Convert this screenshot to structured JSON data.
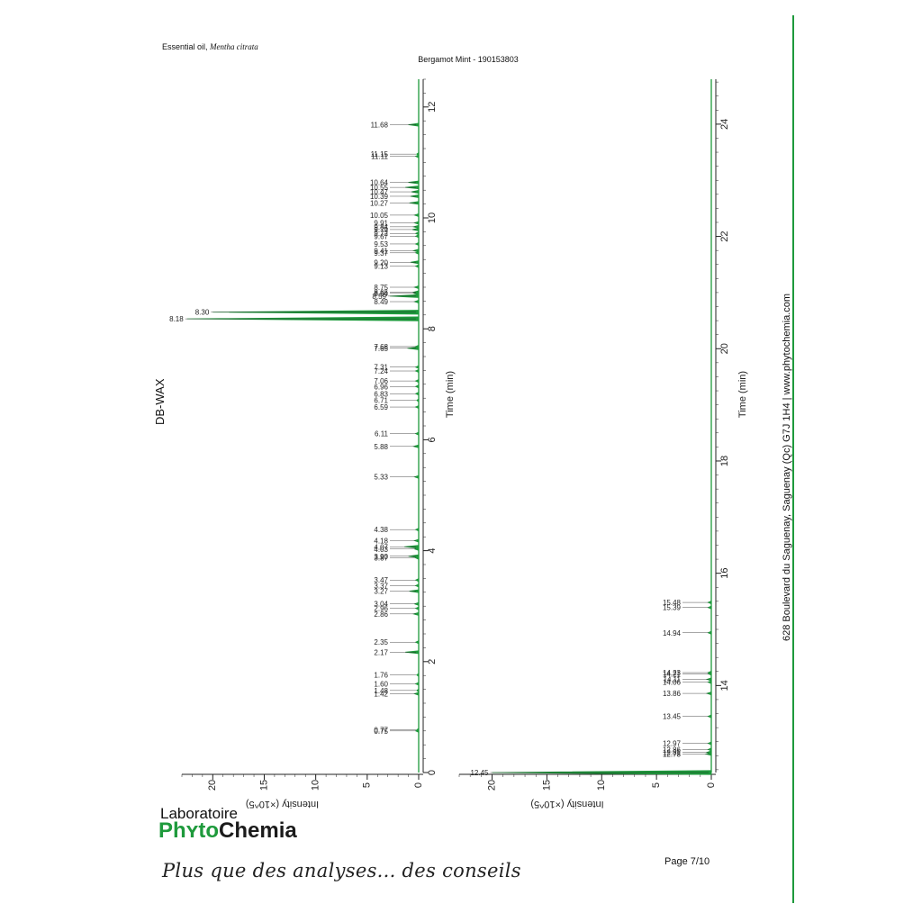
{
  "header": {
    "sample_prefix": "Essential oil, ",
    "sample_latin": "Mentha citrata",
    "title": "Bergamot Mint - 190153803"
  },
  "column_label": "DB-WAX",
  "footer": {
    "logo_line1": "Laboratoire",
    "logo_line2a": "Ph",
    "logo_line2b": "to",
    "logo_line2c": "Chemia",
    "tagline": "Plus que des analyses... des conseils",
    "page": "Page 7/10"
  },
  "sidebar": {
    "address": "628 Boulevard du Saguenay, Saguenay (Qc)  G7J 1H4  |  www.phytochemia.com"
  },
  "colors": {
    "trace": "#1e9a3c",
    "axis": "#222222",
    "brand": "#1e9a3c"
  },
  "chart_data": [
    {
      "type": "line",
      "orientation": "rotated",
      "xlabel": "Time (min)",
      "ylabel": "Intensity (×10^5)",
      "xlim": [
        0,
        12.5
      ],
      "ylim": [
        0,
        23
      ],
      "x_ticks": [
        0,
        2,
        4,
        6,
        8,
        10,
        12
      ],
      "y_ticks": [
        0,
        5,
        10,
        15,
        20
      ],
      "peaks": [
        {
          "t": 0.75,
          "h": 0.3,
          "label": "0.75"
        },
        {
          "t": 0.77,
          "h": 0.2,
          "label": "0.77"
        },
        {
          "t": 1.42,
          "h": 0.4,
          "label": "1.42"
        },
        {
          "t": 1.48,
          "h": 0.2,
          "label": "1.48"
        },
        {
          "t": 1.6,
          "h": 0.3,
          "label": "1.60"
        },
        {
          "t": 1.76,
          "h": 0.2,
          "label": "1.76"
        },
        {
          "t": 2.17,
          "h": 1.3,
          "label": "2.17"
        },
        {
          "t": 2.35,
          "h": 0.3,
          "label": "2.35"
        },
        {
          "t": 2.86,
          "h": 0.5,
          "label": "2.86"
        },
        {
          "t": 2.96,
          "h": 0.3,
          "label": "2.96"
        },
        {
          "t": 3.04,
          "h": 0.4,
          "label": "3.04"
        },
        {
          "t": 3.27,
          "h": 0.9,
          "label": "3.27"
        },
        {
          "t": 3.37,
          "h": 0.3,
          "label": "3.37"
        },
        {
          "t": 3.47,
          "h": 0.3,
          "label": "3.47"
        },
        {
          "t": 3.87,
          "h": 0.3,
          "label": "3.87"
        },
        {
          "t": 3.9,
          "h": 1.0,
          "label": "3.90"
        },
        {
          "t": 4.03,
          "h": 0.4,
          "label": "4.03"
        },
        {
          "t": 4.07,
          "h": 1.4,
          "label": "4.07"
        },
        {
          "t": 4.18,
          "h": 0.4,
          "label": "4.18"
        },
        {
          "t": 4.38,
          "h": 0.3,
          "label": "4.38"
        },
        {
          "t": 5.33,
          "h": 0.4,
          "label": "5.33"
        },
        {
          "t": 5.88,
          "h": 0.5,
          "label": "5.88"
        },
        {
          "t": 6.11,
          "h": 0.3,
          "label": "6.11"
        },
        {
          "t": 6.59,
          "h": 0.3,
          "label": "6.59"
        },
        {
          "t": 6.71,
          "h": 0.2,
          "label": "6.71"
        },
        {
          "t": 6.83,
          "h": 0.3,
          "label": "6.83"
        },
        {
          "t": 6.96,
          "h": 0.3,
          "label": "6.96"
        },
        {
          "t": 7.06,
          "h": 0.3,
          "label": "7.06"
        },
        {
          "t": 7.24,
          "h": 0.3,
          "label": "7.24"
        },
        {
          "t": 7.31,
          "h": 0.3,
          "label": "7.31"
        },
        {
          "t": 7.65,
          "h": 1.1,
          "label": "7.65"
        },
        {
          "t": 7.68,
          "h": 0.3,
          "label": "7.68"
        },
        {
          "t": 8.18,
          "h": 22.5,
          "label": "8.18"
        },
        {
          "t": 8.3,
          "h": 20.0,
          "label": "8.30"
        },
        {
          "t": 8.49,
          "h": 0.4,
          "label": "8.49"
        },
        {
          "t": 8.59,
          "h": 2.8,
          "label": "8.59"
        },
        {
          "t": 8.64,
          "h": 0.5,
          "label": "8.64"
        },
        {
          "t": 8.66,
          "h": 0.5,
          "label": "8.66"
        },
        {
          "t": 8.75,
          "h": 0.4,
          "label": "8.75"
        },
        {
          "t": 9.13,
          "h": 0.3,
          "label": "9.13"
        },
        {
          "t": 9.2,
          "h": 0.8,
          "label": "9.20"
        },
        {
          "t": 9.37,
          "h": 0.3,
          "label": "9.37"
        },
        {
          "t": 9.41,
          "h": 0.5,
          "label": "9.41"
        },
        {
          "t": 9.53,
          "h": 0.3,
          "label": "9.53"
        },
        {
          "t": 9.67,
          "h": 0.3,
          "label": "9.67"
        },
        {
          "t": 9.72,
          "h": 0.3,
          "label": "9.72"
        },
        {
          "t": 9.79,
          "h": 0.6,
          "label": "9.79"
        },
        {
          "t": 9.84,
          "h": 0.5,
          "label": "9.84"
        },
        {
          "t": 9.91,
          "h": 0.4,
          "label": "9.91"
        },
        {
          "t": 10.05,
          "h": 0.4,
          "label": "10.05"
        },
        {
          "t": 10.27,
          "h": 0.9,
          "label": "10.27"
        },
        {
          "t": 10.39,
          "h": 0.8,
          "label": "10.39"
        },
        {
          "t": 10.47,
          "h": 0.7,
          "label": "10.47"
        },
        {
          "t": 10.55,
          "h": 1.3,
          "label": "10.55"
        },
        {
          "t": 10.64,
          "h": 1.0,
          "label": "10.64"
        },
        {
          "t": 11.11,
          "h": 0.3,
          "label": "11.11"
        },
        {
          "t": 11.15,
          "h": 0.2,
          "label": "11.15"
        },
        {
          "t": 11.68,
          "h": 1.0,
          "label": "11.68"
        }
      ]
    },
    {
      "type": "line",
      "orientation": "rotated",
      "xlabel": "Time (min)",
      "ylabel": "Intensity (×10^5)",
      "xlim": [
        12.45,
        24.8
      ],
      "ylim": [
        0,
        23
      ],
      "x_ticks": [
        14,
        16,
        18,
        20,
        22,
        24
      ],
      "y_ticks": [
        0,
        5,
        10,
        15,
        20
      ],
      "peaks": [
        {
          "t": 12.45,
          "h": 20.0,
          "label": "12.45"
        },
        {
          "t": 12.78,
          "h": 0.5,
          "label": "12.78"
        },
        {
          "t": 12.81,
          "h": 0.4,
          "label": "12.81"
        },
        {
          "t": 12.86,
          "h": 0.3,
          "label": "12.86"
        },
        {
          "t": 12.97,
          "h": 0.3,
          "label": "12.97"
        },
        {
          "t": 13.45,
          "h": 0.3,
          "label": "13.45"
        },
        {
          "t": 13.86,
          "h": 0.4,
          "label": "13.86"
        },
        {
          "t": 14.06,
          "h": 0.3,
          "label": "14.06"
        },
        {
          "t": 14.11,
          "h": 0.4,
          "label": "14.11"
        },
        {
          "t": 14.21,
          "h": 0.3,
          "label": "14.21"
        },
        {
          "t": 14.23,
          "h": 0.3,
          "label": "14.23"
        },
        {
          "t": 14.94,
          "h": 0.3,
          "label": "14.94"
        },
        {
          "t": 15.39,
          "h": 0.3,
          "label": "15.39"
        },
        {
          "t": 15.48,
          "h": 0.3,
          "label": "15.48"
        }
      ]
    }
  ]
}
